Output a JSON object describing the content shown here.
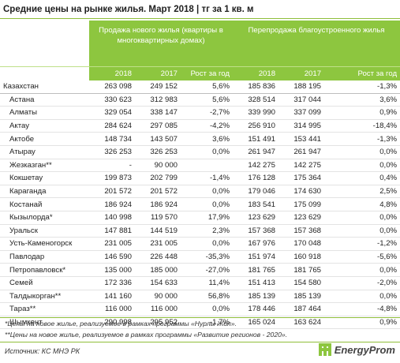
{
  "title": "Средние цены на рынке жилья. Март 2018 | тг за 1 кв. м",
  "header": {
    "group_new": "Продажа нового жилья (квартиры в многоквартирных домах)",
    "group_resale": "Перепродажа благоустроенного жилья",
    "col_2018": "2018",
    "col_2017": "2017",
    "col_growth": "Рост за год"
  },
  "rows": [
    {
      "name": "Казахстан",
      "n18": "263 098",
      "n17": "249 152",
      "ng": "5,6%",
      "r18": "185 836",
      "r17": "188 195",
      "rg": "-1,3%"
    },
    {
      "name": "Астана",
      "n18": "330 623",
      "n17": "312 983",
      "ng": "5,6%",
      "r18": "328 514",
      "r17": "317 044",
      "rg": "3,6%"
    },
    {
      "name": "Алматы",
      "n18": "329 054",
      "n17": "338 147",
      "ng": "-2,7%",
      "r18": "339 990",
      "r17": "337 099",
      "rg": "0,9%"
    },
    {
      "name": "Актау",
      "n18": "284 624",
      "n17": "297 085",
      "ng": "-4,2%",
      "r18": "256 910",
      "r17": "314 995",
      "rg": "-18,4%"
    },
    {
      "name": "Актобе",
      "n18": "148 734",
      "n17": "143 507",
      "ng": "3,6%",
      "r18": "151 491",
      "r17": "153 441",
      "rg": "-1,3%"
    },
    {
      "name": "Атырау",
      "n18": "326 253",
      "n17": "326 253",
      "ng": "0,0%",
      "r18": "261 947",
      "r17": "261 947",
      "rg": "0,0%"
    },
    {
      "name": "Жезказган**",
      "n18": "-",
      "n17": "90 000",
      "ng": "",
      "r18": "142 275",
      "r17": "142 275",
      "rg": "0,0%"
    },
    {
      "name": "Кокшетау",
      "n18": "199 873",
      "n17": "202 799",
      "ng": "-1,4%",
      "r18": "176 128",
      "r17": "175 364",
      "rg": "0,4%"
    },
    {
      "name": "Караганда",
      "n18": "201 572",
      "n17": "201 572",
      "ng": "0,0%",
      "r18": "179 046",
      "r17": "174 630",
      "rg": "2,5%"
    },
    {
      "name": "Костанай",
      "n18": "186 924",
      "n17": "186 924",
      "ng": "0,0%",
      "r18": "183 541",
      "r17": "175 099",
      "rg": "4,8%"
    },
    {
      "name": "Кызылорда*",
      "n18": "140 998",
      "n17": "119 570",
      "ng": "17,9%",
      "r18": "123 629",
      "r17": "123 629",
      "rg": "0,0%"
    },
    {
      "name": "Уральск",
      "n18": "147 881",
      "n17": "144 519",
      "ng": "2,3%",
      "r18": "157 368",
      "r17": "157 368",
      "rg": "0,0%"
    },
    {
      "name": "Усть-Каменогорск",
      "n18": "231 005",
      "n17": "231 005",
      "ng": "0,0%",
      "r18": "167 976",
      "r17": "170 048",
      "rg": "-1,2%"
    },
    {
      "name": "Павлодар",
      "n18": "146 590",
      "n17": "226 448",
      "ng": "-35,3%",
      "r18": "151 974",
      "r17": "160 918",
      "rg": "-5,6%"
    },
    {
      "name": "Петропавловск*",
      "n18": "135 000",
      "n17": "185 000",
      "ng": "-27,0%",
      "r18": "181 765",
      "r17": "181 765",
      "rg": "0,0%"
    },
    {
      "name": "Семей",
      "n18": "172 336",
      "n17": "154 633",
      "ng": "11,4%",
      "r18": "151 413",
      "r17": "154 580",
      "rg": "-2,0%"
    },
    {
      "name": "Талдыкорган**",
      "n18": "141 160",
      "n17": "90 000",
      "ng": "56,8%",
      "r18": "185 139",
      "r17": "185 139",
      "rg": "0,0%"
    },
    {
      "name": "Тараз**",
      "n18": "116 000",
      "n17": "116 000",
      "ng": "0,0%",
      "r18": "178 446",
      "r17": "187 464",
      "rg": "-4,8%"
    },
    {
      "name": "Шымкент",
      "n18": "290 998",
      "n17": "295 952",
      "ng": "-1,7%",
      "r18": "165 024",
      "r17": "163 624",
      "rg": "0,9%"
    }
  ],
  "footnotes": [
    "*Цены на новое жилье, реализуемое в рамках программы «Нурлы Жол».",
    "**Цены на новое жилье, реализуемое в рамках программы «Развитие регионов - 2020»."
  ],
  "source": "Источник: КС МНЭ РК",
  "logo": {
    "text": "EnergyProm",
    "icon": "energyprom-logo-icon",
    "color": "#8dc63f"
  },
  "colors": {
    "header_bg": "#8dc63f",
    "header_text": "#ffffff"
  }
}
